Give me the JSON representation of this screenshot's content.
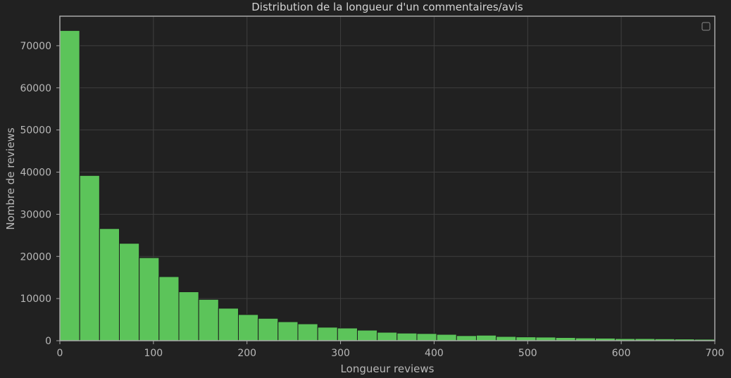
{
  "chart_data": {
    "type": "bar",
    "title": "Distribution de la longueur d'un commentaires/avis",
    "xlabel": "Longueur reviews",
    "ylabel": "Nombre de reviews",
    "xlim": [
      0,
      700
    ],
    "ylim": [
      0,
      77000
    ],
    "bin_width": 21.2,
    "xticks": [
      0,
      100,
      200,
      300,
      400,
      500,
      600,
      700
    ],
    "yticks": [
      0,
      10000,
      20000,
      30000,
      40000,
      50000,
      60000,
      70000
    ],
    "grid": true,
    "legend": "top-right (empty)",
    "bins": [
      {
        "start": 0.0,
        "value": 73600
      },
      {
        "start": 21.2,
        "value": 39200
      },
      {
        "start": 42.4,
        "value": 26600
      },
      {
        "start": 63.6,
        "value": 23100
      },
      {
        "start": 84.8,
        "value": 19700
      },
      {
        "start": 106.0,
        "value": 15200
      },
      {
        "start": 127.2,
        "value": 11600
      },
      {
        "start": 148.4,
        "value": 9800
      },
      {
        "start": 169.6,
        "value": 7700
      },
      {
        "start": 190.8,
        "value": 6200
      },
      {
        "start": 212.0,
        "value": 5300
      },
      {
        "start": 233.2,
        "value": 4500
      },
      {
        "start": 254.4,
        "value": 4000
      },
      {
        "start": 275.6,
        "value": 3200
      },
      {
        "start": 296.8,
        "value": 3000
      },
      {
        "start": 318.0,
        "value": 2500
      },
      {
        "start": 339.2,
        "value": 2000
      },
      {
        "start": 360.4,
        "value": 1800
      },
      {
        "start": 381.6,
        "value": 1700
      },
      {
        "start": 402.8,
        "value": 1500
      },
      {
        "start": 424.0,
        "value": 1200
      },
      {
        "start": 445.2,
        "value": 1300
      },
      {
        "start": 466.4,
        "value": 1000
      },
      {
        "start": 487.6,
        "value": 900
      },
      {
        "start": 508.8,
        "value": 850
      },
      {
        "start": 530.0,
        "value": 750
      },
      {
        "start": 551.2,
        "value": 650
      },
      {
        "start": 572.4,
        "value": 600
      },
      {
        "start": 593.6,
        "value": 500
      },
      {
        "start": 614.8,
        "value": 500
      },
      {
        "start": 636.0,
        "value": 450
      },
      {
        "start": 657.2,
        "value": 400
      },
      {
        "start": 678.4,
        "value": 350
      }
    ],
    "colors": {
      "bar": "#5cc45a",
      "bar_edge": "#1e1e1e",
      "grid": "#3f3f3f",
      "spine": "#a8a8a8",
      "background": "#212121"
    }
  }
}
